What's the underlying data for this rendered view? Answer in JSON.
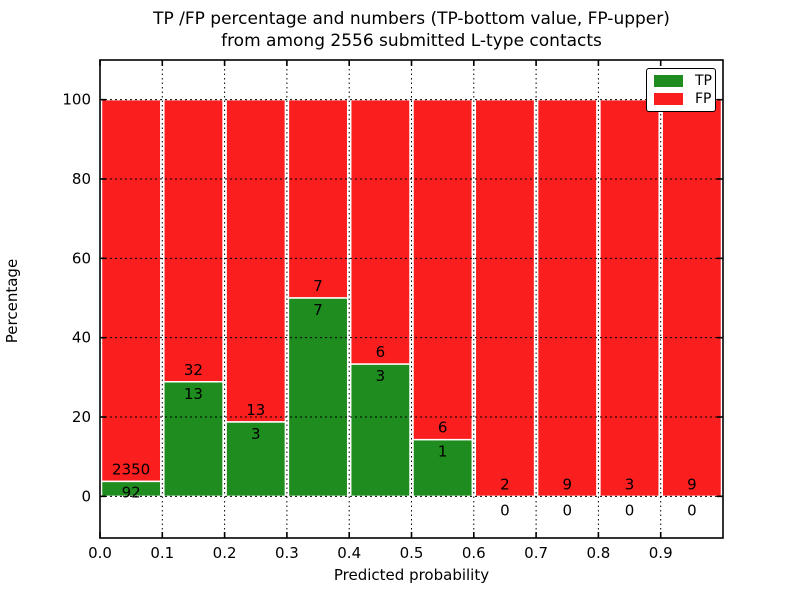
{
  "figure": {
    "title_line1": "TP /FP percentage and numbers (TP-bottom value, FP-upper)",
    "title_line2": "from among 2556 submitted L-type contacts",
    "xlabel": "Predicted probability",
    "ylabel": "Percentage"
  },
  "legend": {
    "position": "upper right",
    "items": [
      {
        "label": "TP",
        "color": "#1e8c1e"
      },
      {
        "label": "FP",
        "color": "#fa1e1e"
      }
    ]
  },
  "chart_data": {
    "type": "bar",
    "stacked": true,
    "normalized_to_percent": true,
    "title": "TP /FP percentage and numbers (TP-bottom value, FP-upper) from among 2556 submitted L-type contacts",
    "xlabel": "Predicted probability",
    "ylabel": "Percentage",
    "total_contacts": 2556,
    "bin_edges": [
      0.0,
      0.1,
      0.2,
      0.3,
      0.4,
      0.5,
      0.6,
      0.7,
      0.8,
      0.9,
      1.0
    ],
    "x_tick_labels": [
      "0.0",
      "0.1",
      "0.2",
      "0.3",
      "0.4",
      "0.5",
      "0.6",
      "0.7",
      "0.8",
      "0.9"
    ],
    "y_tick_values": [
      0,
      20,
      40,
      60,
      80,
      100
    ],
    "xlim": [
      0.0,
      1.0
    ],
    "ylim": [
      -10.5,
      110
    ],
    "grid": true,
    "grid_style": "dotted",
    "series": [
      {
        "name": "TP",
        "color": "#1e8c1e",
        "counts": [
          92,
          13,
          3,
          7,
          3,
          1,
          0,
          0,
          0,
          0
        ]
      },
      {
        "name": "FP",
        "color": "#fa1e1e",
        "counts": [
          2350,
          32,
          13,
          7,
          6,
          6,
          2,
          9,
          3,
          9
        ]
      }
    ],
    "tp_percentages": [
      3.8,
      28.9,
      18.8,
      50.0,
      33.3,
      14.3,
      0.0,
      0.0,
      0.0,
      0.0
    ],
    "legend_position": "upper right"
  },
  "colors": {
    "tp": "#1e8c1e",
    "fp": "#fa1e1e",
    "bar_edge": "#ffffff",
    "axis": "#000000",
    "grid": "#000000",
    "background": "#ffffff"
  }
}
